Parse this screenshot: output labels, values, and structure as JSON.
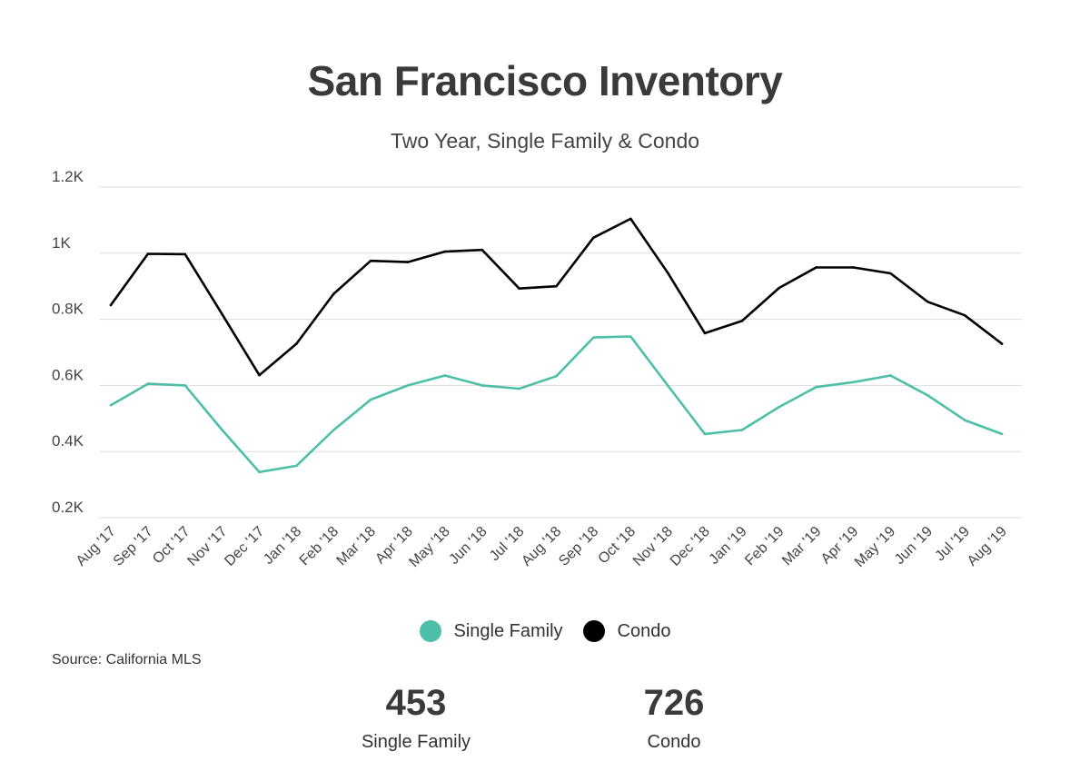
{
  "header": {
    "title": "San Francisco Inventory",
    "subtitle": "Two Year, Single Family & Condo"
  },
  "chart_data": {
    "type": "line",
    "categories": [
      "Aug '17",
      "Sep '17",
      "Oct '17",
      "Nov '17",
      "Dec '17",
      "Jan '18",
      "Feb '18",
      "Mar '18",
      "Apr '18",
      "May '18",
      "Jun '18",
      "Jul '18",
      "Aug '18",
      "Sep '18",
      "Oct '18",
      "Nov '18",
      "Dec '18",
      "Jan '19",
      "Feb '19",
      "Mar '19",
      "Apr '19",
      "May '19",
      "Jun '19",
      "Jul '19",
      "Aug '19"
    ],
    "series": [
      {
        "name": "Single Family",
        "color": "#4dbfa8",
        "values": [
          540,
          605,
          600,
          465,
          338,
          357,
          465,
          557,
          600,
          630,
          600,
          590,
          628,
          745,
          748,
          600,
          453,
          465,
          535,
          595,
          610,
          630,
          570,
          495,
          453
        ]
      },
      {
        "name": "Condo",
        "color": "#000000",
        "values": [
          843,
          998,
          997,
          815,
          631,
          726,
          877,
          977,
          973,
          1005,
          1010,
          893,
          900,
          1047,
          1104,
          941,
          758,
          795,
          895,
          957,
          957,
          939,
          853,
          812,
          726
        ]
      }
    ],
    "yticks": [
      {
        "value": 200,
        "label": "0.2K"
      },
      {
        "value": 400,
        "label": "0.4K"
      },
      {
        "value": 600,
        "label": "0.6K"
      },
      {
        "value": 800,
        "label": "0.8K"
      },
      {
        "value": 1000,
        "label": "1K"
      },
      {
        "value": 1200,
        "label": "1.2K"
      }
    ],
    "ylim": [
      200,
      1200
    ],
    "grid": true,
    "legend_position": "bottom-center"
  },
  "legend": {
    "items": [
      {
        "label": "Single Family",
        "color": "#4dbfa8"
      },
      {
        "label": "Condo",
        "color": "#000000"
      }
    ]
  },
  "footer": {
    "source": "Source:  California MLS"
  },
  "stats": [
    {
      "value": "453",
      "label": "Single Family"
    },
    {
      "value": "726",
      "label": "Condo"
    }
  ]
}
